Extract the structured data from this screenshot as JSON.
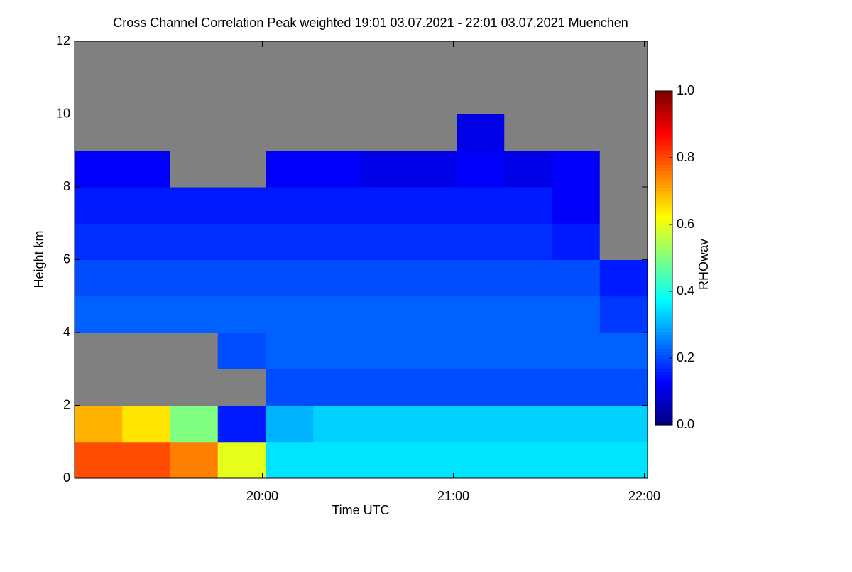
{
  "chart_data": {
    "type": "heatmap",
    "title": "Cross Channel Correlation Peak weighted   19:01 03.07.2021 - 22:01 03.07.2021 Muenchen",
    "x_label": "Time UTC",
    "y_label": "Height km",
    "colorbar_label": "RHOwav",
    "xbins": [
      19.0167,
      19.2667,
      19.5167,
      19.7667,
      20.0167,
      20.2667,
      20.5167,
      20.7667,
      21.0167,
      21.2667,
      21.5167,
      21.7667,
      22.0167
    ],
    "ybins": [
      0,
      1,
      2,
      3,
      4,
      5,
      6,
      7,
      8,
      9,
      10,
      11,
      12
    ],
    "z": [
      [
        0.8,
        0.8,
        0.75,
        0.6,
        0.35,
        0.35,
        0.35,
        0.35,
        0.35,
        0.35,
        0.35,
        0.35
      ],
      [
        0.7,
        0.65,
        0.5,
        0.15,
        0.3,
        0.33,
        0.33,
        0.33,
        0.33,
        0.33,
        0.33,
        0.33
      ],
      [
        null,
        null,
        null,
        null,
        0.2,
        0.2,
        0.2,
        0.2,
        0.2,
        0.2,
        0.2,
        0.2
      ],
      [
        null,
        null,
        null,
        0.2,
        0.22,
        0.22,
        0.22,
        0.22,
        0.22,
        0.22,
        0.22,
        0.22
      ],
      [
        0.22,
        0.22,
        0.22,
        0.22,
        0.22,
        0.22,
        0.22,
        0.22,
        0.22,
        0.22,
        0.22,
        0.18
      ],
      [
        0.2,
        0.2,
        0.2,
        0.2,
        0.2,
        0.2,
        0.2,
        0.2,
        0.2,
        0.2,
        0.2,
        0.15
      ],
      [
        0.17,
        0.17,
        0.17,
        0.17,
        0.17,
        0.17,
        0.17,
        0.17,
        0.17,
        0.17,
        0.15,
        null
      ],
      [
        0.15,
        0.15,
        0.15,
        0.15,
        0.15,
        0.15,
        0.15,
        0.15,
        0.15,
        0.15,
        0.12,
        null
      ],
      [
        0.12,
        0.12,
        null,
        null,
        0.12,
        0.12,
        0.1,
        0.1,
        0.12,
        0.1,
        0.12,
        null
      ],
      [
        null,
        null,
        null,
        null,
        null,
        null,
        null,
        null,
        0.1,
        null,
        null,
        null
      ],
      [
        null,
        null,
        null,
        null,
        null,
        null,
        null,
        null,
        null,
        null,
        null,
        null
      ],
      [
        null,
        null,
        null,
        null,
        null,
        null,
        null,
        null,
        null,
        null,
        null,
        null
      ]
    ],
    "xlim": [
      19.0167,
      22.0167
    ],
    "xticks": [
      {
        "value": 20,
        "label": "20:00"
      },
      {
        "value": 21,
        "label": "21:00"
      },
      {
        "value": 22,
        "label": "22:00"
      }
    ],
    "ylim": [
      0,
      12
    ],
    "yticks": [
      0,
      2,
      4,
      6,
      8,
      10,
      12
    ],
    "zlim": [
      0,
      1
    ],
    "zticks": [
      {
        "value": 0,
        "label": "0.0"
      },
      {
        "value": 0.2,
        "label": "0.2"
      },
      {
        "value": 0.4,
        "label": "0.4"
      },
      {
        "value": 0.6,
        "label": "0.6"
      },
      {
        "value": 0.8,
        "label": "0.8"
      },
      {
        "value": 1,
        "label": "1.0"
      }
    ],
    "missing_color": "#808080"
  }
}
